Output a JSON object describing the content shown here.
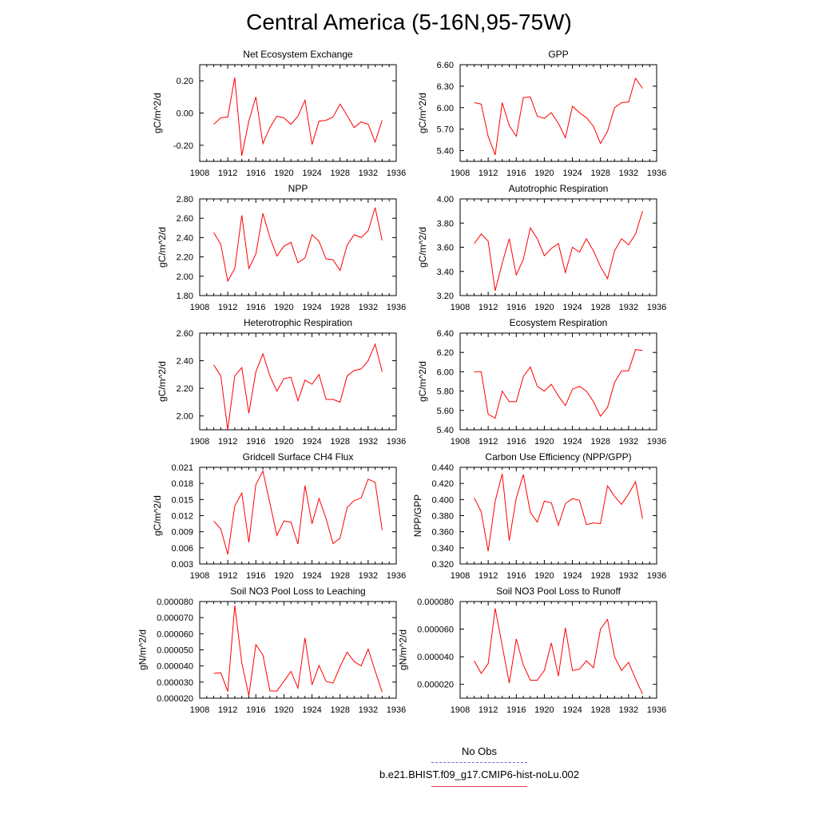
{
  "title": "Central America (5-16N,95-75W)",
  "colors": {
    "series": "#ff0000",
    "no_obs_line": "#6b6bd6",
    "run_line": "#e0485a"
  },
  "legend": {
    "no_obs": "No Obs",
    "run": "b.e21.BHIST.f09_g17.CMIP6-hist-noLu.002"
  },
  "chart_data": [
    {
      "type": "line",
      "title": "Net Ecosystem Exchange",
      "ylabel": "gC/m^2/d",
      "xlim": [
        1908,
        1936
      ],
      "ylim": [
        -0.3,
        0.3
      ],
      "xticks": [
        "1908",
        "1912",
        "1916",
        "1920",
        "1924",
        "1928",
        "1932",
        "1936"
      ],
      "yticks": [
        "-0.20",
        "0.00",
        "0.20"
      ],
      "x": [
        1910,
        1911,
        1912,
        1913,
        1914,
        1915,
        1916,
        1917,
        1918,
        1919,
        1920,
        1921,
        1922,
        1923,
        1924,
        1925,
        1926,
        1927,
        1928,
        1929,
        1930,
        1931,
        1932,
        1933,
        1934
      ],
      "values": [
        -0.07,
        -0.03,
        -0.025,
        0.22,
        -0.265,
        -0.05,
        0.1,
        -0.19,
        -0.09,
        -0.02,
        -0.03,
        -0.07,
        -0.02,
        0.08,
        -0.195,
        -0.05,
        -0.045,
        -0.025,
        0.055,
        -0.015,
        -0.09,
        -0.055,
        -0.07,
        -0.18,
        -0.045
      ]
    },
    {
      "type": "line",
      "title": "GPP",
      "ylabel": "gC/m^2/d",
      "xlim": [
        1908,
        1936
      ],
      "ylim": [
        5.25,
        6.6
      ],
      "xticks": [
        "1908",
        "1912",
        "1916",
        "1920",
        "1924",
        "1928",
        "1932",
        "1936"
      ],
      "yticks": [
        "5.40",
        "5.70",
        "6.00",
        "6.30",
        "6.60"
      ],
      "x": [
        1910,
        1911,
        1912,
        1913,
        1914,
        1915,
        1916,
        1917,
        1918,
        1919,
        1920,
        1921,
        1922,
        1923,
        1924,
        1925,
        1926,
        1927,
        1928,
        1929,
        1930,
        1931,
        1932,
        1933,
        1934
      ],
      "values": [
        6.07,
        6.05,
        5.6,
        5.34,
        6.07,
        5.75,
        5.6,
        6.14,
        6.15,
        5.88,
        5.85,
        5.93,
        5.78,
        5.58,
        6.02,
        5.93,
        5.86,
        5.74,
        5.5,
        5.67,
        6.0,
        6.07,
        6.08,
        6.41,
        6.27
      ]
    },
    {
      "type": "line",
      "title": "NPP",
      "ylabel": "gC/m^2/d",
      "xlim": [
        1908,
        1936
      ],
      "ylim": [
        1.8,
        2.8
      ],
      "xticks": [
        "1908",
        "1912",
        "1916",
        "1920",
        "1924",
        "1928",
        "1932",
        "1936"
      ],
      "yticks": [
        "1.80",
        "2.00",
        "2.20",
        "2.40",
        "2.60",
        "2.80"
      ],
      "x": [
        1910,
        1911,
        1912,
        1913,
        1914,
        1915,
        1916,
        1917,
        1918,
        1919,
        1920,
        1921,
        1922,
        1923,
        1924,
        1925,
        1926,
        1927,
        1928,
        1929,
        1930,
        1931,
        1932,
        1933,
        1934
      ],
      "values": [
        2.45,
        2.33,
        1.95,
        2.08,
        2.63,
        2.08,
        2.23,
        2.65,
        2.4,
        2.21,
        2.31,
        2.35,
        2.14,
        2.19,
        2.43,
        2.36,
        2.18,
        2.17,
        2.06,
        2.32,
        2.43,
        2.4,
        2.47,
        2.71,
        2.37
      ]
    },
    {
      "type": "line",
      "title": "Autotrophic Respiration",
      "ylabel": "gC/m^2/d",
      "xlim": [
        1908,
        1936
      ],
      "ylim": [
        3.2,
        4.0
      ],
      "xticks": [
        "1908",
        "1912",
        "1916",
        "1920",
        "1924",
        "1928",
        "1932",
        "1936"
      ],
      "yticks": [
        "3.20",
        "3.40",
        "3.60",
        "3.80",
        "4.00"
      ],
      "x": [
        1910,
        1911,
        1912,
        1913,
        1914,
        1915,
        1916,
        1917,
        1918,
        1919,
        1920,
        1921,
        1922,
        1923,
        1924,
        1925,
        1926,
        1927,
        1928,
        1929,
        1930,
        1931,
        1932,
        1933,
        1934
      ],
      "values": [
        3.63,
        3.71,
        3.65,
        3.24,
        3.47,
        3.67,
        3.37,
        3.5,
        3.76,
        3.67,
        3.53,
        3.59,
        3.63,
        3.39,
        3.6,
        3.56,
        3.67,
        3.57,
        3.44,
        3.34,
        3.57,
        3.67,
        3.62,
        3.71,
        3.9
      ]
    },
    {
      "type": "line",
      "title": "Heterotrophic Respiration",
      "ylabel": "gC/m^2/d",
      "xlim": [
        1908,
        1936
      ],
      "ylim": [
        1.9,
        2.6
      ],
      "xticks": [
        "1908",
        "1912",
        "1916",
        "1920",
        "1924",
        "1928",
        "1932",
        "1936"
      ],
      "yticks": [
        "2.00",
        "2.20",
        "2.40",
        "2.60"
      ],
      "x": [
        1910,
        1911,
        1912,
        1913,
        1914,
        1915,
        1916,
        1917,
        1918,
        1919,
        1920,
        1921,
        1922,
        1923,
        1924,
        1925,
        1926,
        1927,
        1928,
        1929,
        1930,
        1931,
        1932,
        1933,
        1934
      ],
      "values": [
        2.37,
        2.29,
        1.9,
        2.29,
        2.35,
        2.02,
        2.32,
        2.45,
        2.29,
        2.18,
        2.27,
        2.28,
        2.11,
        2.26,
        2.23,
        2.3,
        2.12,
        2.12,
        2.1,
        2.29,
        2.33,
        2.34,
        2.4,
        2.52,
        2.32
      ]
    },
    {
      "type": "line",
      "title": "Ecosystem Respiration",
      "ylabel": "gC/m^2/d",
      "xlim": [
        1908,
        1936
      ],
      "ylim": [
        5.4,
        6.4
      ],
      "xticks": [
        "1908",
        "1912",
        "1916",
        "1920",
        "1924",
        "1928",
        "1932",
        "1936"
      ],
      "yticks": [
        "5.40",
        "5.60",
        "5.80",
        "6.00",
        "6.20",
        "6.40"
      ],
      "x": [
        1910,
        1911,
        1912,
        1913,
        1914,
        1915,
        1916,
        1917,
        1918,
        1919,
        1920,
        1921,
        1922,
        1923,
        1924,
        1925,
        1926,
        1927,
        1928,
        1929,
        1930,
        1931,
        1932,
        1933,
        1934
      ],
      "values": [
        6.0,
        6.0,
        5.56,
        5.52,
        5.8,
        5.69,
        5.69,
        5.95,
        6.05,
        5.85,
        5.8,
        5.87,
        5.75,
        5.65,
        5.82,
        5.85,
        5.8,
        5.69,
        5.54,
        5.63,
        5.89,
        6.01,
        6.01,
        6.23,
        6.22
      ]
    },
    {
      "type": "line",
      "title": "Gridcell Surface CH4 Flux",
      "ylabel": "gC/m^2/d",
      "xlim": [
        1908,
        1936
      ],
      "ylim": [
        0.003,
        0.021
      ],
      "xticks": [
        "1908",
        "1912",
        "1916",
        "1920",
        "1924",
        "1928",
        "1932",
        "1936"
      ],
      "yticks": [
        "0.003",
        "0.006",
        "0.009",
        "0.012",
        "0.015",
        "0.018",
        "0.021"
      ],
      "x": [
        1910,
        1911,
        1912,
        1913,
        1914,
        1915,
        1916,
        1917,
        1918,
        1919,
        1920,
        1921,
        1922,
        1923,
        1924,
        1925,
        1926,
        1927,
        1928,
        1929,
        1930,
        1931,
        1932,
        1933,
        1934
      ],
      "values": [
        0.011,
        0.0095,
        0.0048,
        0.0138,
        0.0162,
        0.007,
        0.0178,
        0.0203,
        0.0143,
        0.0083,
        0.011,
        0.0108,
        0.0067,
        0.0176,
        0.0105,
        0.0152,
        0.0115,
        0.0068,
        0.0078,
        0.0135,
        0.0148,
        0.0153,
        0.0188,
        0.0182,
        0.0093
      ]
    },
    {
      "type": "line",
      "title": "Carbon Use Efficiency (NPP/GPP)",
      "ylabel": "NPP/GPP",
      "xlim": [
        1908,
        1936
      ],
      "ylim": [
        0.32,
        0.44
      ],
      "xticks": [
        "1908",
        "1912",
        "1916",
        "1920",
        "1924",
        "1928",
        "1932",
        "1936"
      ],
      "yticks": [
        "0.320",
        "0.340",
        "0.360",
        "0.380",
        "0.400",
        "0.420",
        "0.440"
      ],
      "x": [
        1910,
        1911,
        1912,
        1913,
        1914,
        1915,
        1916,
        1917,
        1918,
        1919,
        1920,
        1921,
        1922,
        1923,
        1924,
        1925,
        1926,
        1927,
        1928,
        1929,
        1930,
        1931,
        1932,
        1933,
        1934
      ],
      "values": [
        0.402,
        0.385,
        0.336,
        0.398,
        0.432,
        0.349,
        0.402,
        0.431,
        0.384,
        0.372,
        0.398,
        0.396,
        0.368,
        0.395,
        0.401,
        0.399,
        0.369,
        0.371,
        0.37,
        0.417,
        0.404,
        0.394,
        0.407,
        0.422,
        0.376
      ]
    },
    {
      "type": "line",
      "title": "Soil NO3 Pool Loss to Leaching",
      "ylabel": "gN/m^2/d",
      "xlim": [
        1908,
        1936
      ],
      "ylim": [
        2e-05,
        8e-05
      ],
      "xticks": [
        "1908",
        "1912",
        "1916",
        "1920",
        "1924",
        "1928",
        "1932",
        "1936"
      ],
      "yticks": [
        "0.000020",
        "0.000030",
        "0.000040",
        "0.000050",
        "0.000060",
        "0.000070",
        "0.000080"
      ],
      "x": [
        1910,
        1911,
        1912,
        1913,
        1914,
        1915,
        1916,
        1917,
        1918,
        1919,
        1920,
        1921,
        1922,
        1923,
        1924,
        1925,
        1926,
        1927,
        1928,
        1929,
        1930,
        1931,
        1932,
        1933,
        1934
      ],
      "values": [
        3.53e-05,
        3.58e-05,
        2.41e-05,
        7.76e-05,
        4.19e-05,
        2.15e-05,
        5.32e-05,
        4.68e-05,
        2.45e-05,
        2.44e-05,
        3.05e-05,
        3.66e-05,
        2.63e-05,
        5.74e-05,
        2.83e-05,
        4.03e-05,
        3.04e-05,
        2.93e-05,
        3.96e-05,
        4.85e-05,
        4.27e-05,
        4.01e-05,
        5.05e-05,
        3.69e-05,
        2.38e-05
      ]
    },
    {
      "type": "line",
      "title": "Soil NO3 Pool Loss to Runoff",
      "ylabel": "gN/m^2/d",
      "xlim": [
        1908,
        1936
      ],
      "ylim": [
        1e-05,
        8e-05
      ],
      "xticks": [
        "1908",
        "1912",
        "1916",
        "1920",
        "1924",
        "1928",
        "1932",
        "1936"
      ],
      "yticks": [
        "0.000020",
        "0.000040",
        "0.000060",
        "0.000080"
      ],
      "x": [
        1910,
        1911,
        1912,
        1913,
        1914,
        1915,
        1916,
        1917,
        1918,
        1919,
        1920,
        1921,
        1922,
        1923,
        1924,
        1925,
        1926,
        1927,
        1928,
        1929,
        1930,
        1931,
        1932,
        1933,
        1934
      ],
      "values": [
        3.7e-05,
        2.8e-05,
        3.5e-05,
        7.5e-05,
        4.8e-05,
        2.1e-05,
        5.3e-05,
        3.4e-05,
        2.3e-05,
        2.3e-05,
        3e-05,
        5e-05,
        2.6e-05,
        6.1e-05,
        3e-05,
        3.1e-05,
        3.7e-05,
        3.2e-05,
        6e-05,
        6.7e-05,
        4e-05,
        3e-05,
        3.6e-05,
        2.4e-05,
        1.3e-05
      ]
    }
  ]
}
